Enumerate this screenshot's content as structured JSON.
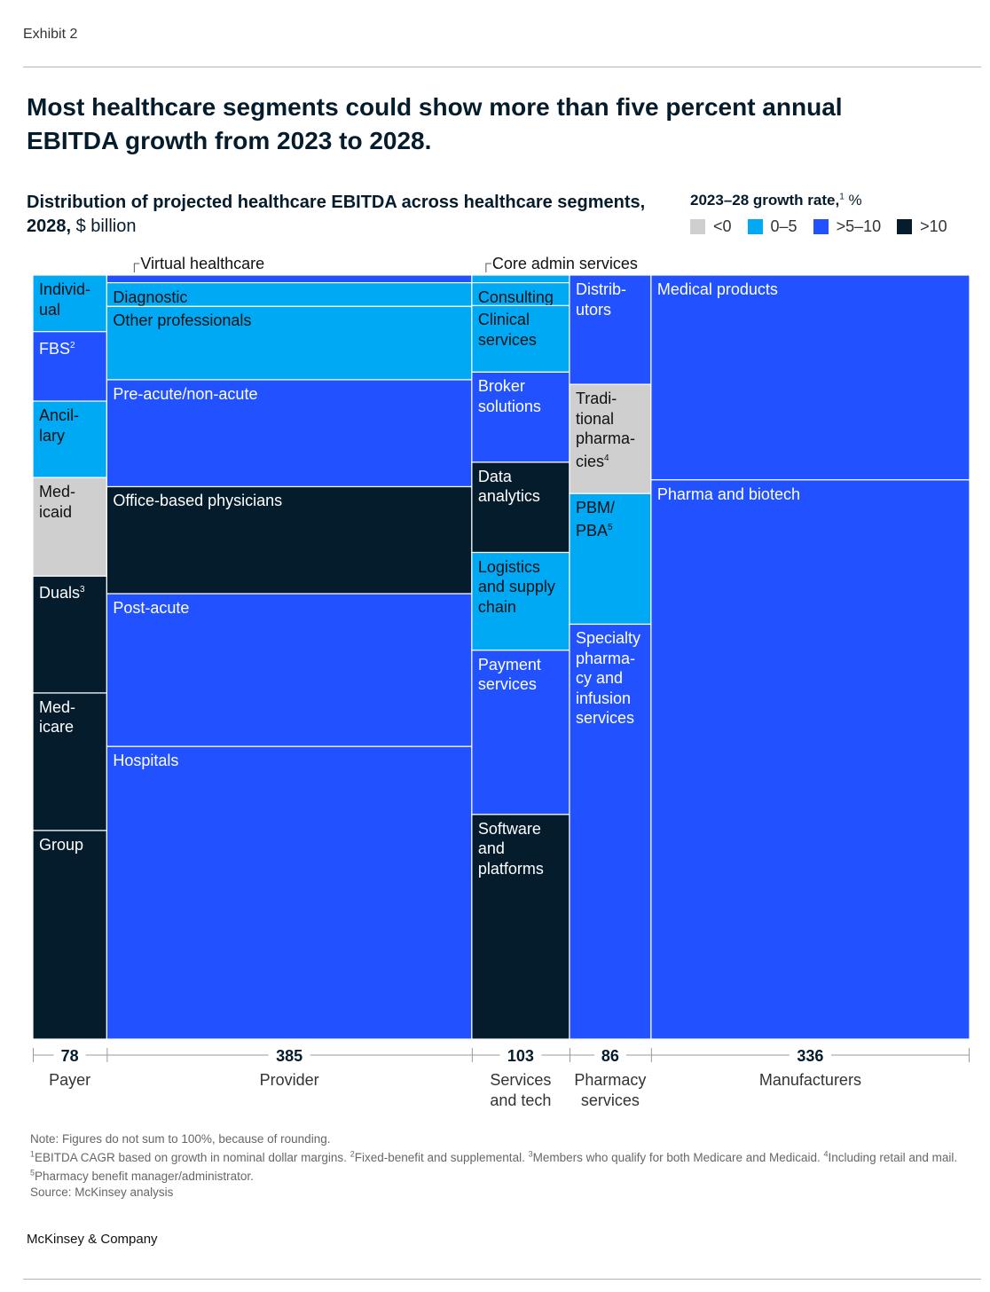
{
  "header": {
    "exhibit": "Exhibit 2",
    "title": "Most healthcare segments could show more than five percent annual EBITDA growth from 2023 to 2028.",
    "subtitle_bold": "Distribution of projected healthcare EBITDA across healthcare segments, 2028,",
    "subtitle_unit": "$ billion"
  },
  "legend": {
    "title": "2023–28 growth rate,",
    "title_sup": "1",
    "title_unit": "%",
    "items": [
      {
        "label": "<0",
        "color": "#cfcfcf"
      },
      {
        "label": "0–5",
        "color": "#00a9f4"
      },
      {
        "label": ">5–10",
        "color": "#2251ff"
      },
      {
        "label": ">10",
        "color": "#051c2c"
      }
    ]
  },
  "chart_data": {
    "type": "marimekko",
    "value_unit": "$ billion",
    "columns": [
      {
        "name": "Payer",
        "total": "78",
        "segments": [
          {
            "label": "Individ-\nual",
            "growth": "0–5",
            "share": 0.074
          },
          {
            "label": "FBS",
            "sup": "2",
            "growth": ">5–10",
            "share": 0.091
          },
          {
            "label": "Ancil-\nlary",
            "growth": "0–5",
            "share": 0.1
          },
          {
            "label": "Med-\nicaid",
            "growth": "<0",
            "share": 0.129
          },
          {
            "label": "Duals",
            "sup": "3",
            "growth": ">10",
            "share": 0.153
          },
          {
            "label": "Med-\nicare",
            "growth": ">10",
            "share": 0.18
          },
          {
            "label": "Group",
            "growth": ">10",
            "share": 0.273
          }
        ]
      },
      {
        "name": "Provider",
        "total": "385",
        "segments": [
          {
            "label": "Virtual healthcare",
            "growth": ">5–10",
            "share": 0.01,
            "callout": true
          },
          {
            "label": "Diagnostic",
            "growth": "0–5",
            "share": 0.031
          },
          {
            "label": "Other professionals",
            "growth": "0–5",
            "share": 0.096
          },
          {
            "label": "Pre-acute/non-acute",
            "growth": ">5–10",
            "share": 0.14
          },
          {
            "label": "Office-based physicians",
            "growth": ">10",
            "share": 0.14
          },
          {
            "label": "Post-acute",
            "growth": ">5–10",
            "share": 0.2
          },
          {
            "label": "Hospitals",
            "growth": ">5–10",
            "share": 0.383
          }
        ]
      },
      {
        "name": "Services\nand tech",
        "total": "103",
        "segments": [
          {
            "label": "Core admin services",
            "growth": "0–5",
            "share": 0.01,
            "callout": true
          },
          {
            "label": "Consulting",
            "growth": "0–5",
            "share": 0.03
          },
          {
            "label": "Clinical\nservices",
            "growth": "0–5",
            "share": 0.087
          },
          {
            "label": "Broker\nsolutions",
            "growth": ">5–10",
            "share": 0.118
          },
          {
            "label": "Data\nanalytics",
            "growth": ">10",
            "share": 0.118
          },
          {
            "label": "Logistics\nand supply\nchain",
            "growth": "0–5",
            "share": 0.128
          },
          {
            "label": "Payment\nservices",
            "growth": ">5–10",
            "share": 0.215
          },
          {
            "label": "Software\nand\nplatforms",
            "growth": ">10",
            "share": 0.294
          }
        ]
      },
      {
        "name": "Pharmacy\nservices",
        "total": "86",
        "segments": [
          {
            "label": "Distrib-\nutors",
            "growth": ">5–10",
            "share": 0.143
          },
          {
            "label": "Tradi-\ntional\npharma-\ncies",
            "sup": "4",
            "growth": "<0",
            "share": 0.143
          },
          {
            "label": "PBM/\nPBA",
            "sup": "5",
            "growth": "0–5",
            "share": 0.171
          },
          {
            "label": "Specialty\npharma-\ncy and\ninfusion\nservices",
            "growth": ">5–10",
            "share": 0.543
          }
        ]
      },
      {
        "name": "Manufacturers",
        "total": "336",
        "segments": [
          {
            "label": "Medical products",
            "growth": ">5–10",
            "share": 0.268
          },
          {
            "label": "Pharma and biotech",
            "growth": ">5–10",
            "share": 0.732
          }
        ]
      }
    ]
  },
  "notes": {
    "note": "Note: Figures do not sum to 100%, because of rounding.",
    "footnotes": [
      {
        "sup": "1",
        "text": "EBITDA CAGR based on growth in nominal dollar margins."
      },
      {
        "sup": "2",
        "text": "Fixed-benefit and supplemental."
      },
      {
        "sup": "3",
        "text": "Members who qualify for both Medicare and Medicaid."
      },
      {
        "sup": "4",
        "text": "Including retail and mail."
      },
      {
        "sup": "5",
        "text": "Pharmacy benefit manager/administrator."
      }
    ],
    "source": "Source: McKinsey analysis"
  },
  "footer": {
    "brand": "McKinsey & Company"
  }
}
